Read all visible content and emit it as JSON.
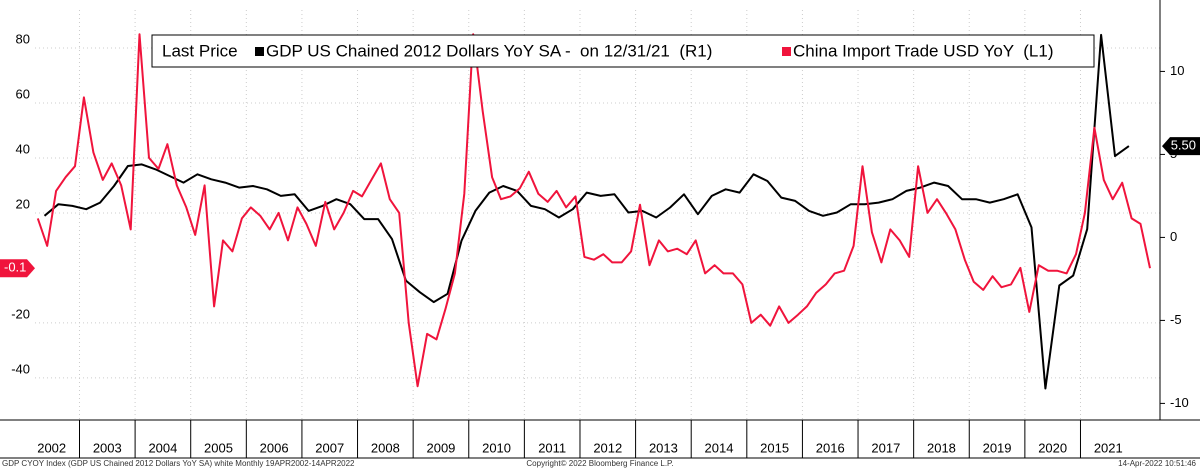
{
  "chart_data": {
    "type": "line",
    "legend_title": "Last Price",
    "footer_left": "GDP CYOY Index (GDP US Chained 2012 Dollars YoY SA) white  Monthly 19APR2002-14APR2022",
    "footer_center": "Copyright© 2022 Bloomberg Finance L.P.",
    "footer_right": "14-Apr-2022 10:51:46",
    "xlim": [
      2002.2,
      2022.43
    ],
    "xticks": [
      2002,
      2003,
      2004,
      2005,
      2006,
      2007,
      2008,
      2009,
      2010,
      2011,
      2012,
      2013,
      2014,
      2015,
      2016,
      2017,
      2018,
      2019,
      2020,
      2021
    ],
    "ylim": [
      -55.3,
      93.8
    ],
    "yticks": [
      -40,
      -20,
      20,
      40,
      60,
      80
    ],
    "y2lim": [
      -11,
      13.7
    ],
    "y2ticks": [
      -10,
      -5,
      0,
      5,
      10
    ],
    "grid": true,
    "series": [
      {
        "name": "GDP US Chained 2012 Dollars YoY SA -  on 12/31/21  (R1)",
        "color": "#000000",
        "axis": "y2",
        "last_label": "5.50",
        "x": [
          2002.37,
          2002.62,
          2002.87,
          2003.12,
          2003.37,
          2003.62,
          2003.87,
          2004.12,
          2004.37,
          2004.62,
          2004.87,
          2005.12,
          2005.37,
          2005.62,
          2005.87,
          2006.12,
          2006.37,
          2006.62,
          2006.87,
          2007.12,
          2007.37,
          2007.62,
          2007.87,
          2008.12,
          2008.37,
          2008.62,
          2008.87,
          2009.12,
          2009.37,
          2009.62,
          2009.87,
          2010.12,
          2010.37,
          2010.62,
          2010.87,
          2011.12,
          2011.37,
          2011.62,
          2011.87,
          2012.12,
          2012.37,
          2012.62,
          2012.87,
          2013.12,
          2013.37,
          2013.62,
          2013.87,
          2014.12,
          2014.37,
          2014.62,
          2014.87,
          2015.12,
          2015.37,
          2015.62,
          2015.87,
          2016.12,
          2016.37,
          2016.62,
          2016.87,
          2017.12,
          2017.37,
          2017.62,
          2017.87,
          2018.12,
          2018.37,
          2018.62,
          2018.87,
          2019.12,
          2019.37,
          2019.62,
          2019.87,
          2020.12,
          2020.37,
          2020.62,
          2020.87,
          2021.12,
          2021.37,
          2021.62,
          2021.87
        ],
        "values": [
          1.3,
          2.0,
          1.9,
          1.7,
          2.1,
          3.1,
          4.3,
          4.4,
          4.1,
          3.7,
          3.3,
          3.8,
          3.5,
          3.3,
          3.0,
          3.1,
          2.9,
          2.5,
          2.6,
          1.6,
          1.9,
          2.3,
          2.0,
          1.1,
          1.1,
          -0.1,
          -2.6,
          -3.3,
          -3.9,
          -3.4,
          -0.2,
          1.6,
          2.7,
          3.1,
          2.8,
          1.9,
          1.7,
          1.2,
          1.7,
          2.7,
          2.5,
          2.6,
          1.5,
          1.6,
          1.2,
          1.8,
          2.6,
          1.4,
          2.5,
          2.9,
          2.7,
          3.8,
          3.4,
          2.4,
          2.2,
          1.6,
          1.3,
          1.5,
          2.0,
          2.0,
          2.1,
          2.3,
          2.8,
          3.0,
          3.3,
          3.1,
          2.3,
          2.3,
          2.1,
          2.3,
          2.6,
          0.6,
          -9.1,
          -2.9,
          -2.3,
          0.5,
          12.2,
          4.9,
          5.5
        ]
      },
      {
        "name": "China Import Trade USD YoY  (L1)",
        "color": "#f0143c",
        "axis": "y",
        "last_label": "-0.1",
        "x": [
          2002.25,
          2002.42,
          2002.58,
          2002.75,
          2002.92,
          2003.08,
          2003.25,
          2003.42,
          2003.58,
          2003.75,
          2003.92,
          2004.08,
          2004.25,
          2004.42,
          2004.58,
          2004.75,
          2004.92,
          2005.08,
          2005.25,
          2005.42,
          2005.58,
          2005.75,
          2005.92,
          2006.08,
          2006.25,
          2006.42,
          2006.58,
          2006.75,
          2006.92,
          2007.08,
          2007.25,
          2007.42,
          2007.58,
          2007.75,
          2007.92,
          2008.08,
          2008.25,
          2008.42,
          2008.58,
          2008.75,
          2008.92,
          2009.08,
          2009.25,
          2009.42,
          2009.58,
          2009.75,
          2009.92,
          2010.08,
          2010.25,
          2010.42,
          2010.58,
          2010.75,
          2010.92,
          2011.08,
          2011.25,
          2011.42,
          2011.58,
          2011.75,
          2011.92,
          2012.08,
          2012.25,
          2012.42,
          2012.58,
          2012.75,
          2012.92,
          2013.08,
          2013.25,
          2013.42,
          2013.58,
          2013.75,
          2013.92,
          2014.08,
          2014.25,
          2014.42,
          2014.58,
          2014.75,
          2014.92,
          2015.08,
          2015.25,
          2015.42,
          2015.58,
          2015.75,
          2015.92,
          2016.08,
          2016.25,
          2016.42,
          2016.58,
          2016.75,
          2016.92,
          2017.08,
          2017.25,
          2017.42,
          2017.58,
          2017.75,
          2017.92,
          2018.08,
          2018.25,
          2018.42,
          2018.58,
          2018.75,
          2018.92,
          2019.08,
          2019.25,
          2019.42,
          2019.58,
          2019.75,
          2019.92,
          2020.08,
          2020.25,
          2020.42,
          2020.58,
          2020.75,
          2020.92,
          2021.08,
          2021.25,
          2021.42,
          2021.58,
          2021.75,
          2021.92,
          2022.08,
          2022.25
        ],
        "values": [
          18,
          8,
          28,
          33,
          37,
          62,
          42,
          32,
          38,
          30,
          14,
          85,
          40,
          36,
          45,
          30,
          22,
          12,
          30,
          -14,
          10,
          6,
          18,
          22,
          19,
          14,
          20,
          10,
          22,
          16,
          8,
          24,
          14,
          20,
          28,
          26,
          32,
          38,
          25,
          20,
          -20,
          -43,
          -24,
          -26,
          -15,
          -2,
          27,
          85,
          57,
          33,
          25,
          26,
          29,
          35,
          27,
          24,
          28,
          22,
          26,
          4,
          3,
          5,
          2,
          2,
          6,
          23,
          1,
          10,
          6,
          7,
          5,
          10,
          -2,
          1,
          -2,
          -2,
          -6,
          -20,
          -17,
          -21,
          -14,
          -20,
          -17,
          -14,
          -9,
          -6,
          -2,
          -1,
          8,
          37,
          13,
          2,
          14,
          10,
          4,
          37,
          20,
          25,
          20,
          14,
          3,
          -5,
          -8,
          -3,
          -7,
          -6,
          0,
          -16,
          1,
          -1,
          -1,
          -2,
          5,
          20,
          51,
          32,
          25,
          31,
          18,
          16,
          -0.1
        ]
      }
    ]
  }
}
